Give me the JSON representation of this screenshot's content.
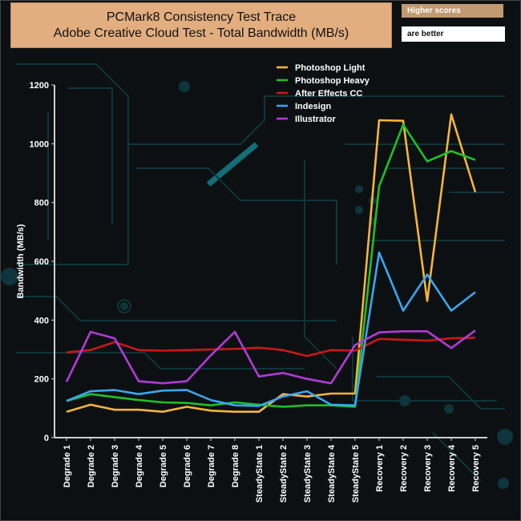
{
  "title_line1": "PCMark8 Consistency Test Trace",
  "title_line2": "Adobe Creative Cloud Test - Total Bandwidth (MB/s)",
  "badge_top": "Higher scores",
  "badge_bottom": "are better",
  "chart_data": {
    "type": "line",
    "ylabel": "Bandwidth (MB/s)",
    "xlabel": "",
    "ylim": [
      0,
      1200
    ],
    "yticks": [
      0,
      200,
      400,
      600,
      800,
      1000,
      1200
    ],
    "grid": false,
    "legend_position": "top",
    "categories": [
      "Degrade 1",
      "Degrade 2",
      "Degrade 3",
      "Degrade 4",
      "Degrade 5",
      "Degrade 6",
      "Degrade 7",
      "Degrade 8",
      "SteadyState 1",
      "SteadyState 2",
      "SteadyState 3",
      "SteadyState 4",
      "SteadyState 5",
      "Recovery 1",
      "Recovery 2",
      "Recovery 3",
      "Recovery 4",
      "Recovery 5"
    ],
    "series": [
      {
        "name": "Photoshop Light",
        "color": "#f5b53a",
        "values": [
          88,
          112,
          95,
          95,
          88,
          105,
          92,
          88,
          88,
          148,
          140,
          150,
          150,
          1080,
          1078,
          465,
          1100,
          835
        ]
      },
      {
        "name": " Photoshop Heavy",
        "color": "#1fbf2a",
        "values": [
          125,
          148,
          138,
          128,
          120,
          118,
          110,
          120,
          112,
          105,
          110,
          110,
          105,
          855,
          1065,
          940,
          975,
          945
        ]
      },
      {
        "name": "After Effects CC",
        "color": "#c81818",
        "values": [
          290,
          298,
          325,
          298,
          296,
          298,
          300,
          302,
          306,
          298,
          278,
          298,
          296,
          336,
          333,
          330,
          338,
          340
        ]
      },
      {
        "name": "Indesign",
        "color": "#3aa6f0",
        "values": [
          125,
          158,
          162,
          148,
          160,
          162,
          128,
          110,
          108,
          140,
          158,
          112,
          110,
          630,
          432,
          555,
          432,
          495
        ]
      },
      {
        "name": "Illustrator",
        "color": "#b23ad8",
        "values": [
          190,
          360,
          338,
          192,
          185,
          192,
          280,
          360,
          208,
          220,
          200,
          185,
          315,
          358,
          362,
          362,
          305,
          365
        ]
      }
    ]
  }
}
